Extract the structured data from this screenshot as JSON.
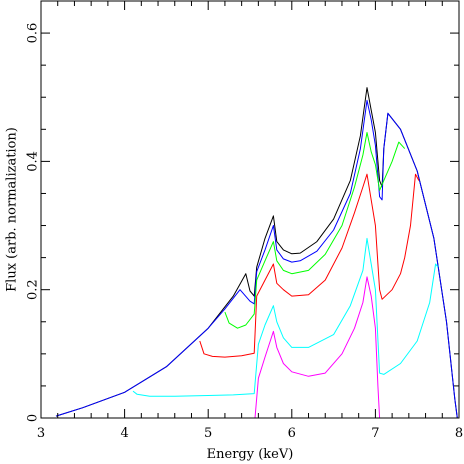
{
  "chart_data": {
    "type": "line",
    "xlabel": "Energy (keV)",
    "ylabel": "Flux (arb. normalization)",
    "xlim": [
      3,
      8
    ],
    "ylim": [
      0,
      0.65
    ],
    "xticks": {
      "major": [
        3,
        4,
        5,
        6,
        7,
        8
      ],
      "labels": [
        "3",
        "4",
        "5",
        "6",
        "7",
        "8"
      ],
      "minor_step": 0.2
    },
    "yticks": {
      "major": [
        0,
        0.2,
        0.4,
        0.6
      ],
      "labels": [
        "0",
        "0.2",
        "0.4",
        "0.6"
      ],
      "minor_step": 0.05
    },
    "grid": false,
    "legend": "none",
    "series": [
      {
        "color": "#000000",
        "points": [
          [
            3.18,
            0.003
          ],
          [
            3.5,
            0.016
          ],
          [
            4.0,
            0.04
          ],
          [
            4.5,
            0.08
          ],
          [
            5.0,
            0.14
          ],
          [
            5.3,
            0.19
          ],
          [
            5.45,
            0.225
          ],
          [
            5.5,
            0.198
          ],
          [
            5.55,
            0.19
          ],
          [
            5.58,
            0.235
          ],
          [
            5.68,
            0.28
          ],
          [
            5.78,
            0.315
          ],
          [
            5.82,
            0.275
          ],
          [
            5.9,
            0.262
          ],
          [
            6.0,
            0.256
          ],
          [
            6.1,
            0.257
          ],
          [
            6.3,
            0.275
          ],
          [
            6.5,
            0.31
          ],
          [
            6.7,
            0.37
          ],
          [
            6.82,
            0.44
          ],
          [
            6.9,
            0.515
          ],
          [
            6.95,
            0.48
          ],
          [
            7.0,
            0.445
          ],
          [
            7.05,
            0.37
          ],
          [
            7.08,
            0.36
          ],
          [
            7.1,
            0.42
          ],
          [
            7.15,
            0.475
          ],
          [
            7.3,
            0.45
          ],
          [
            7.5,
            0.385
          ],
          [
            7.7,
            0.28
          ],
          [
            7.85,
            0.15
          ],
          [
            7.95,
            0.03
          ],
          [
            7.98,
            0.0
          ]
        ]
      },
      {
        "color": "#0000ff",
        "points": [
          [
            3.18,
            0.003
          ],
          [
            3.5,
            0.016
          ],
          [
            4.0,
            0.04
          ],
          [
            4.5,
            0.08
          ],
          [
            5.0,
            0.14
          ],
          [
            5.2,
            0.17
          ],
          [
            5.38,
            0.2
          ],
          [
            5.5,
            0.182
          ],
          [
            5.55,
            0.178
          ],
          [
            5.58,
            0.228
          ],
          [
            5.68,
            0.262
          ],
          [
            5.78,
            0.3
          ],
          [
            5.82,
            0.262
          ],
          [
            5.9,
            0.248
          ],
          [
            6.0,
            0.243
          ],
          [
            6.1,
            0.245
          ],
          [
            6.3,
            0.26
          ],
          [
            6.5,
            0.293
          ],
          [
            6.7,
            0.35
          ],
          [
            6.82,
            0.42
          ],
          [
            6.9,
            0.495
          ],
          [
            6.95,
            0.465
          ],
          [
            7.0,
            0.425
          ],
          [
            7.05,
            0.345
          ],
          [
            7.08,
            0.34
          ],
          [
            7.1,
            0.42
          ],
          [
            7.15,
            0.475
          ],
          [
            7.3,
            0.45
          ],
          [
            7.5,
            0.385
          ],
          [
            7.7,
            0.28
          ],
          [
            7.85,
            0.15
          ],
          [
            7.95,
            0.03
          ],
          [
            7.98,
            0.0
          ]
        ]
      },
      {
        "color": "#00ff00",
        "points": [
          [
            5.2,
            0.165
          ],
          [
            5.25,
            0.148
          ],
          [
            5.35,
            0.14
          ],
          [
            5.45,
            0.145
          ],
          [
            5.55,
            0.162
          ],
          [
            5.58,
            0.215
          ],
          [
            5.68,
            0.245
          ],
          [
            5.78,
            0.275
          ],
          [
            5.82,
            0.245
          ],
          [
            5.9,
            0.23
          ],
          [
            6.0,
            0.225
          ],
          [
            6.2,
            0.23
          ],
          [
            6.4,
            0.255
          ],
          [
            6.6,
            0.3
          ],
          [
            6.75,
            0.36
          ],
          [
            6.85,
            0.41
          ],
          [
            6.9,
            0.445
          ],
          [
            6.95,
            0.415
          ],
          [
            7.0,
            0.395
          ],
          [
            7.05,
            0.355
          ],
          [
            7.1,
            0.37
          ],
          [
            7.2,
            0.4
          ],
          [
            7.28,
            0.43
          ],
          [
            7.35,
            0.42
          ]
        ]
      },
      {
        "color": "#ff0000",
        "points": [
          [
            4.9,
            0.12
          ],
          [
            4.95,
            0.1
          ],
          [
            5.05,
            0.096
          ],
          [
            5.2,
            0.095
          ],
          [
            5.4,
            0.097
          ],
          [
            5.55,
            0.101
          ],
          [
            5.58,
            0.19
          ],
          [
            5.68,
            0.215
          ],
          [
            5.78,
            0.24
          ],
          [
            5.82,
            0.21
          ],
          [
            5.9,
            0.2
          ],
          [
            6.0,
            0.19
          ],
          [
            6.2,
            0.192
          ],
          [
            6.4,
            0.215
          ],
          [
            6.6,
            0.265
          ],
          [
            6.75,
            0.32
          ],
          [
            6.85,
            0.36
          ],
          [
            6.9,
            0.38
          ],
          [
            6.95,
            0.34
          ],
          [
            7.0,
            0.3
          ],
          [
            7.05,
            0.2
          ],
          [
            7.08,
            0.185
          ],
          [
            7.2,
            0.2
          ],
          [
            7.3,
            0.225
          ],
          [
            7.35,
            0.25
          ],
          [
            7.42,
            0.3
          ],
          [
            7.48,
            0.38
          ],
          [
            7.52,
            0.37
          ]
        ]
      },
      {
        "color": "#00ffff",
        "points": [
          [
            4.1,
            0.042
          ],
          [
            4.15,
            0.037
          ],
          [
            4.3,
            0.034
          ],
          [
            4.6,
            0.034
          ],
          [
            5.0,
            0.035
          ],
          [
            5.3,
            0.036
          ],
          [
            5.55,
            0.038
          ],
          [
            5.6,
            0.115
          ],
          [
            5.68,
            0.145
          ],
          [
            5.78,
            0.175
          ],
          [
            5.82,
            0.15
          ],
          [
            5.9,
            0.125
          ],
          [
            6.0,
            0.11
          ],
          [
            6.2,
            0.11
          ],
          [
            6.5,
            0.13
          ],
          [
            6.7,
            0.175
          ],
          [
            6.85,
            0.23
          ],
          [
            6.9,
            0.28
          ],
          [
            6.95,
            0.24
          ],
          [
            7.0,
            0.2
          ],
          [
            7.05,
            0.07
          ],
          [
            7.1,
            0.068
          ],
          [
            7.3,
            0.085
          ],
          [
            7.5,
            0.12
          ],
          [
            7.65,
            0.18
          ],
          [
            7.72,
            0.24
          ],
          [
            7.75,
            0.235
          ]
        ]
      },
      {
        "color": "#ff00ff",
        "points": [
          [
            5.56,
            0.0
          ],
          [
            5.6,
            0.062
          ],
          [
            5.68,
            0.095
          ],
          [
            5.78,
            0.135
          ],
          [
            5.82,
            0.11
          ],
          [
            5.9,
            0.085
          ],
          [
            6.0,
            0.072
          ],
          [
            6.2,
            0.065
          ],
          [
            6.4,
            0.07
          ],
          [
            6.6,
            0.1
          ],
          [
            6.75,
            0.14
          ],
          [
            6.85,
            0.18
          ],
          [
            6.9,
            0.22
          ],
          [
            6.95,
            0.19
          ],
          [
            7.0,
            0.14
          ],
          [
            7.03,
            0.05
          ],
          [
            7.05,
            0.0
          ]
        ]
      }
    ]
  }
}
